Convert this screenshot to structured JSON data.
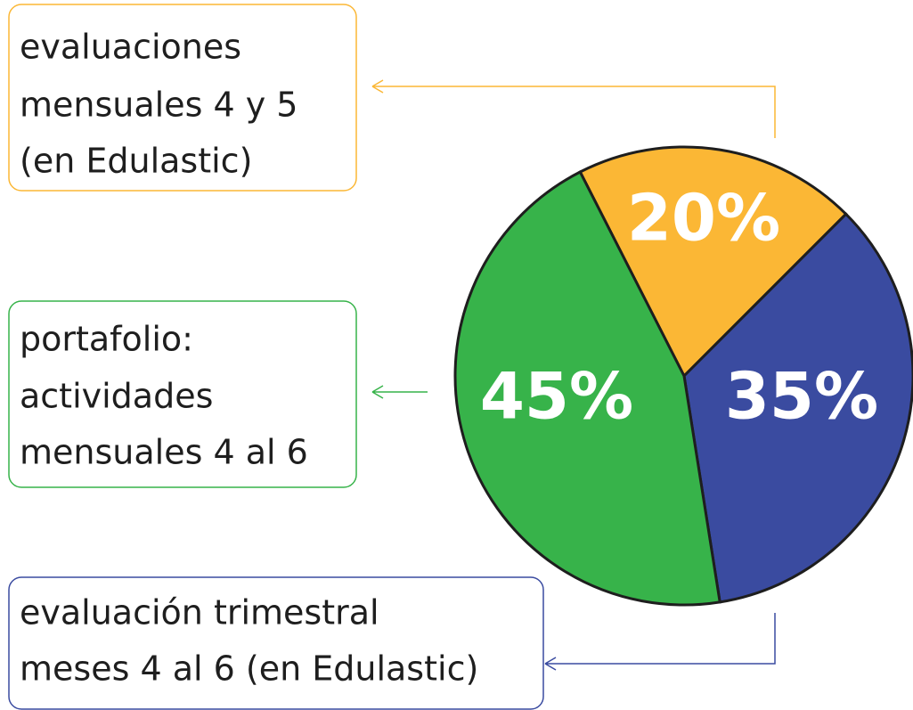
{
  "chart_data": {
    "type": "pie",
    "categories": [
      [
        "evaluaciones",
        "mensuales 4 y 5",
        "(en Edulastic)"
      ],
      [
        "evaluación trimestral",
        "meses 4 al 6 (en Edulastic)"
      ],
      [
        "portafolio:",
        "actividades",
        "mensuales 4 al 6"
      ]
    ],
    "values": [
      20,
      35,
      45
    ],
    "value_labels": [
      "20%",
      "35%",
      "45%"
    ],
    "colors": [
      "#fbb735",
      "#3a4ba0",
      "#37b34a"
    ]
  }
}
